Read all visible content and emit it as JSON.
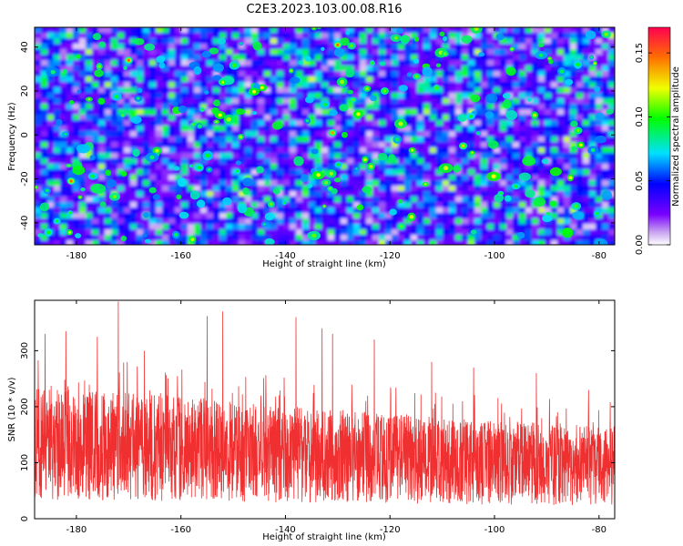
{
  "title": "C2E3.2023.103.00.08.R16",
  "chart_data": [
    {
      "type": "heatmap",
      "xlabel": "Height of straight line (km)",
      "ylabel": "Frequency (Hz)",
      "xlim": [
        -188,
        -77
      ],
      "ylim": [
        -50,
        49
      ],
      "xticks": [
        -180,
        -160,
        -140,
        -120,
        -100,
        -80
      ],
      "yticks": [
        -40,
        -20,
        0,
        20,
        40
      ],
      "colorbar": {
        "label": "Normalized spectral amplitude",
        "range": [
          0,
          0.17
        ],
        "ticks": [
          "0.00",
          "0.05",
          "0.10",
          "0.15"
        ],
        "colormap": "rainbow (white-violet-blue-cyan-green-yellow-red)"
      },
      "description": "noisy speckle field, mostly violet/blue (~0.02-0.06) with scattered cyan/green blobs (~0.07-0.11) and rare yellow/orange/red points (~0.13-0.16)",
      "hotspots": [
        {
          "x": -170,
          "y": 34,
          "value": 0.15
        },
        {
          "x": -130,
          "y": 41,
          "value": 0.15
        },
        {
          "x": -181,
          "y": -21,
          "value": 0.15
        },
        {
          "x": -121,
          "y": 20,
          "value": 0.11
        },
        {
          "x": -131,
          "y": 1,
          "value": 0.14
        },
        {
          "x": -106,
          "y": -5,
          "value": 0.13
        },
        {
          "x": -152,
          "y": 24,
          "value": 0.12
        },
        {
          "x": -84,
          "y": 2,
          "value": 0.11
        }
      ]
    },
    {
      "type": "line",
      "xlabel": "Height of straight line (km)",
      "ylabel": "SNR (10 * v/v)",
      "xlim": [
        -188,
        -77
      ],
      "ylim": [
        0,
        390
      ],
      "xticks": [
        -180,
        -160,
        -140,
        -120,
        -100,
        -80
      ],
      "yticks": [
        0,
        100,
        200,
        300
      ],
      "color": "#f03030",
      "description": "dense noisy SNR trace; typical range ~40-230, spikes up to ~390 near -172 km, overall slowly decreasing trend",
      "trend": [
        {
          "x": -188,
          "y": 135
        },
        {
          "x": -160,
          "y": 125
        },
        {
          "x": -140,
          "y": 115
        },
        {
          "x": -120,
          "y": 108
        },
        {
          "x": -100,
          "y": 100
        },
        {
          "x": -77,
          "y": 95
        }
      ],
      "peaks": [
        {
          "x": -186,
          "y": 330
        },
        {
          "x": -182,
          "y": 335
        },
        {
          "x": -176,
          "y": 325
        },
        {
          "x": -172,
          "y": 388
        },
        {
          "x": -167,
          "y": 300
        },
        {
          "x": -155,
          "y": 362
        },
        {
          "x": -152,
          "y": 370
        },
        {
          "x": -138,
          "y": 360
        },
        {
          "x": -133,
          "y": 340
        },
        {
          "x": -131,
          "y": 330
        },
        {
          "x": -123,
          "y": 320
        },
        {
          "x": -112,
          "y": 280
        },
        {
          "x": -104,
          "y": 270
        },
        {
          "x": -92,
          "y": 260
        },
        {
          "x": -82,
          "y": 230
        }
      ]
    }
  ]
}
